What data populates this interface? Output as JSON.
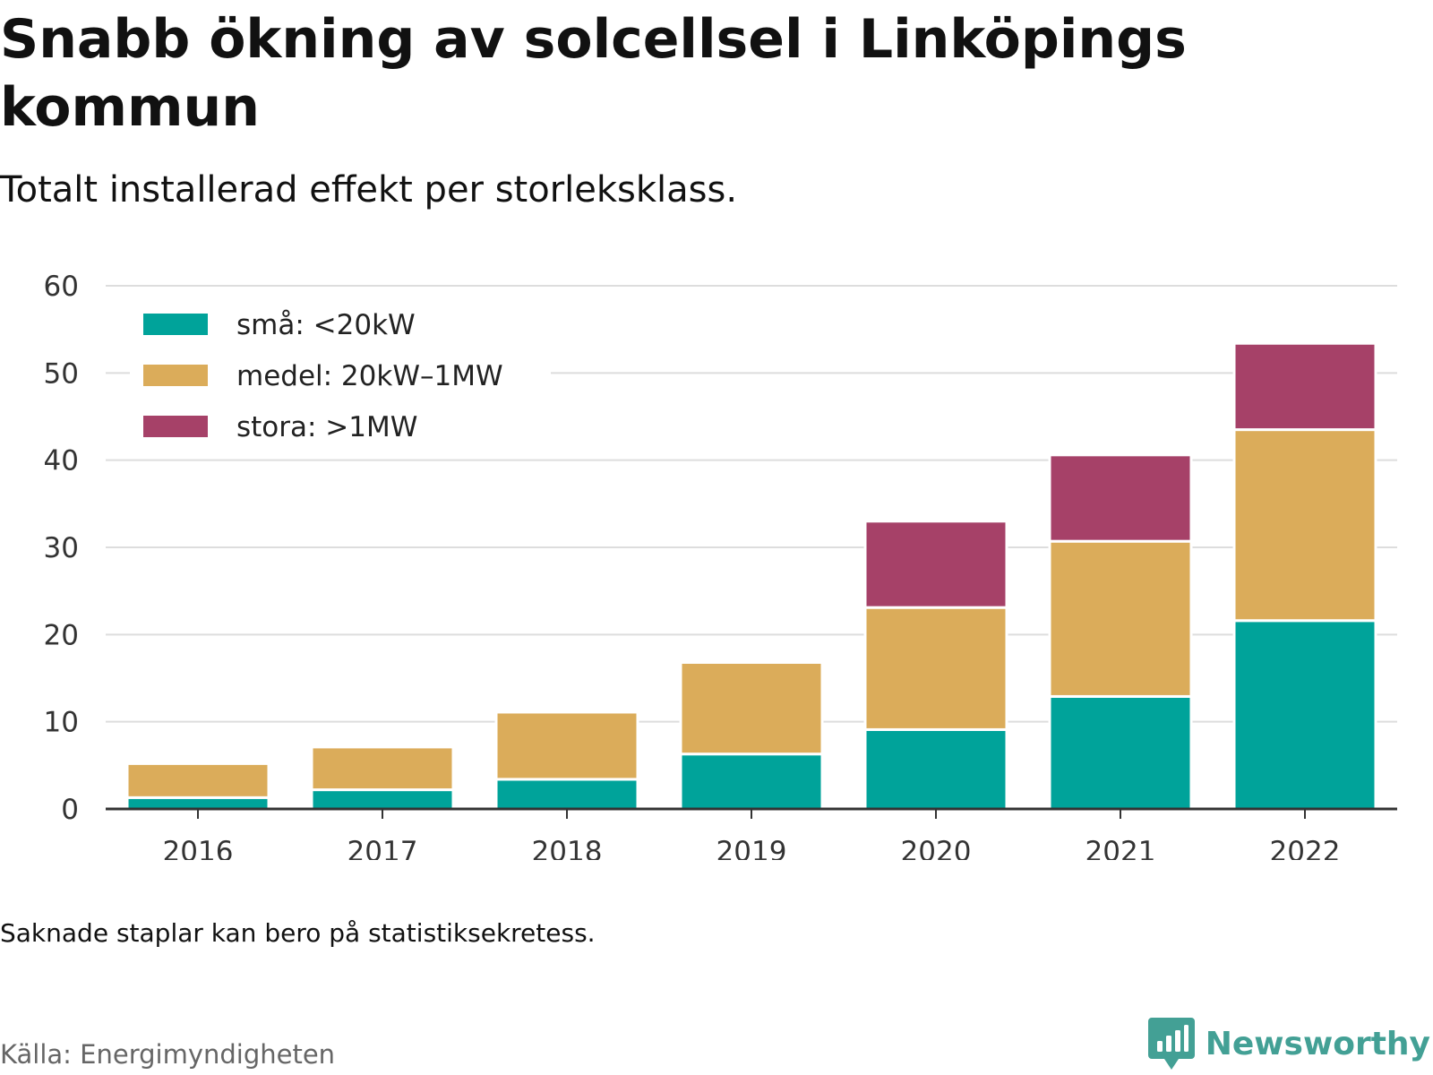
{
  "title": "Snabb ökning av solcellsel i Linköpings kommun",
  "subtitle": "Totalt installerad effekt per storleksklass.",
  "note": "Saknade staplar kan bero på statistiksekretess.",
  "source": "Källa: Energimyndigheten",
  "brand": {
    "name": "Newsworthy",
    "color": "#43a095",
    "icon": "bar-chart-speech-bubble-icon"
  },
  "chart_data": {
    "type": "bar",
    "stacked": true,
    "categories": [
      "2016",
      "2017",
      "2018",
      "2019",
      "2020",
      "2021",
      "2022"
    ],
    "series": [
      {
        "name": "små: <20kW",
        "color": "#00a39a",
        "values": [
          1.3,
          2.2,
          3.4,
          6.3,
          9.1,
          12.9,
          21.6
        ]
      },
      {
        "name": "medel: 20kW–1MW",
        "color": "#dbac5a",
        "values": [
          3.9,
          4.9,
          7.7,
          10.5,
          14.0,
          17.8,
          21.9
        ]
      },
      {
        "name": "stora: >1MW",
        "color": "#a64168",
        "values": [
          0,
          0,
          0,
          0,
          9.9,
          9.9,
          9.9
        ]
      }
    ],
    "ylim": [
      0,
      60
    ],
    "yticks": [
      0,
      10,
      20,
      30,
      40,
      50,
      60
    ],
    "grid": true,
    "legend_position": "top-left",
    "xlabel": "",
    "ylabel": ""
  }
}
